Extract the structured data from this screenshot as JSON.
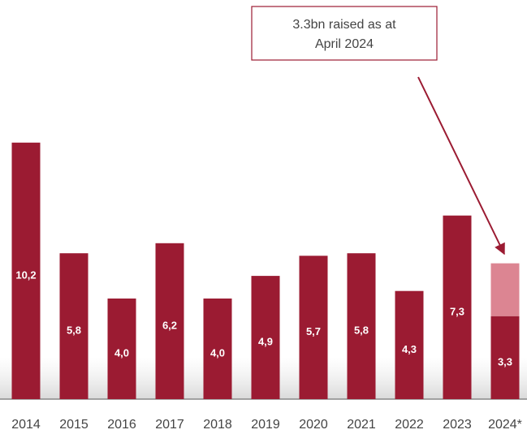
{
  "chart_data": {
    "type": "bar",
    "annotation": [
      "3.3bn raised as at",
      "April 2024"
    ],
    "categories": [
      "2014",
      "2015",
      "2016",
      "2017",
      "2018",
      "2019",
      "2020",
      "2021",
      "2022",
      "2023",
      "2024*"
    ],
    "series": [
      {
        "color": "#9b1b32",
        "values": [
          10.2,
          5.8,
          4.0,
          6.2,
          4.0,
          4.9,
          5.7,
          5.8,
          4.3,
          7.3,
          3.3
        ],
        "value_labels": [
          "10,2",
          "5,8",
          "4,0",
          "6,2",
          "4,0",
          "4,9",
          "5,7",
          "5,8",
          "4,3",
          "7,3",
          "3,3"
        ]
      },
      {
        "color": "#dc8592",
        "values": [
          null,
          null,
          null,
          null,
          null,
          null,
          null,
          null,
          null,
          null,
          2.1
        ]
      }
    ],
    "ylim": [
      0,
      15
    ]
  }
}
